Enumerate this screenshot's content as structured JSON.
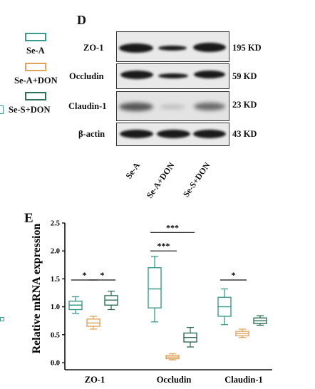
{
  "legend": [
    {
      "label": "Se-A",
      "color": "#3a9b8c"
    },
    {
      "label": "Se-A+DON",
      "color": "#e0a35a"
    },
    {
      "label": "Se-S+DON",
      "color": "#2f6f55"
    }
  ],
  "panel_d": {
    "letter": "D",
    "proteins": [
      {
        "name": "ZO-1",
        "size": "195 KD"
      },
      {
        "name": "Occludin",
        "size": "59 KD"
      },
      {
        "name": "Claudin-1",
        "size": "23 KD"
      },
      {
        "name": "β-actin",
        "size": "43 KD"
      }
    ],
    "lanes": [
      "Se-A",
      "Se-A+DON",
      "Se-S+DON"
    ]
  },
  "panel_e": {
    "letter": "E"
  },
  "colors": {
    "se_a": "#3a9b8c",
    "se_a_don": "#e0a35a",
    "se_s_don": "#2f6f55"
  },
  "chart_data": {
    "type": "box",
    "ylabel": "Relative mRNA expression",
    "ylim": [
      0.0,
      2.5
    ],
    "yticks": [
      "0.0",
      "0.5",
      "1.0",
      "1.5",
      "2.0",
      "2.5"
    ],
    "categories": [
      "ZO-1",
      "Occludin",
      "Claudin-1"
    ],
    "series": [
      {
        "name": "Se-A",
        "boxes": [
          {
            "min": 0.88,
            "q1": 0.95,
            "median": 1.03,
            "q3": 1.1,
            "max": 1.18
          },
          {
            "min": 0.73,
            "q1": 0.98,
            "median": 1.32,
            "q3": 1.7,
            "max": 1.9
          },
          {
            "min": 0.68,
            "q1": 0.83,
            "median": 1.0,
            "q3": 1.17,
            "max": 1.32
          }
        ]
      },
      {
        "name": "Se-A+DON",
        "boxes": [
          {
            "min": 0.6,
            "q1": 0.65,
            "median": 0.71,
            "q3": 0.78,
            "max": 0.83
          },
          {
            "min": 0.05,
            "q1": 0.07,
            "median": 0.1,
            "q3": 0.13,
            "max": 0.16
          },
          {
            "min": 0.45,
            "q1": 0.48,
            "median": 0.52,
            "q3": 0.56,
            "max": 0.6
          }
        ]
      },
      {
        "name": "Se-S+DON",
        "boxes": [
          {
            "min": 0.95,
            "q1": 1.03,
            "median": 1.12,
            "q3": 1.2,
            "max": 1.28
          },
          {
            "min": 0.28,
            "q1": 0.37,
            "median": 0.45,
            "q3": 0.53,
            "max": 0.63
          },
          {
            "min": 0.67,
            "q1": 0.7,
            "median": 0.75,
            "q3": 0.8,
            "max": 0.84
          }
        ]
      }
    ],
    "significance": [
      {
        "category": 0,
        "from": 0,
        "to": 1,
        "label": "*",
        "y": 1.48
      },
      {
        "category": 0,
        "from": 1,
        "to": 2,
        "label": "*",
        "y": 1.48
      },
      {
        "category": 1,
        "from": 0,
        "to": 1,
        "label": "***",
        "y": 2.0
      },
      {
        "category": 1,
        "from": 0,
        "to": 2,
        "label": "***",
        "y": 2.33
      },
      {
        "category": 2,
        "from": 0,
        "to": 1,
        "label": "*",
        "y": 1.48
      }
    ]
  }
}
